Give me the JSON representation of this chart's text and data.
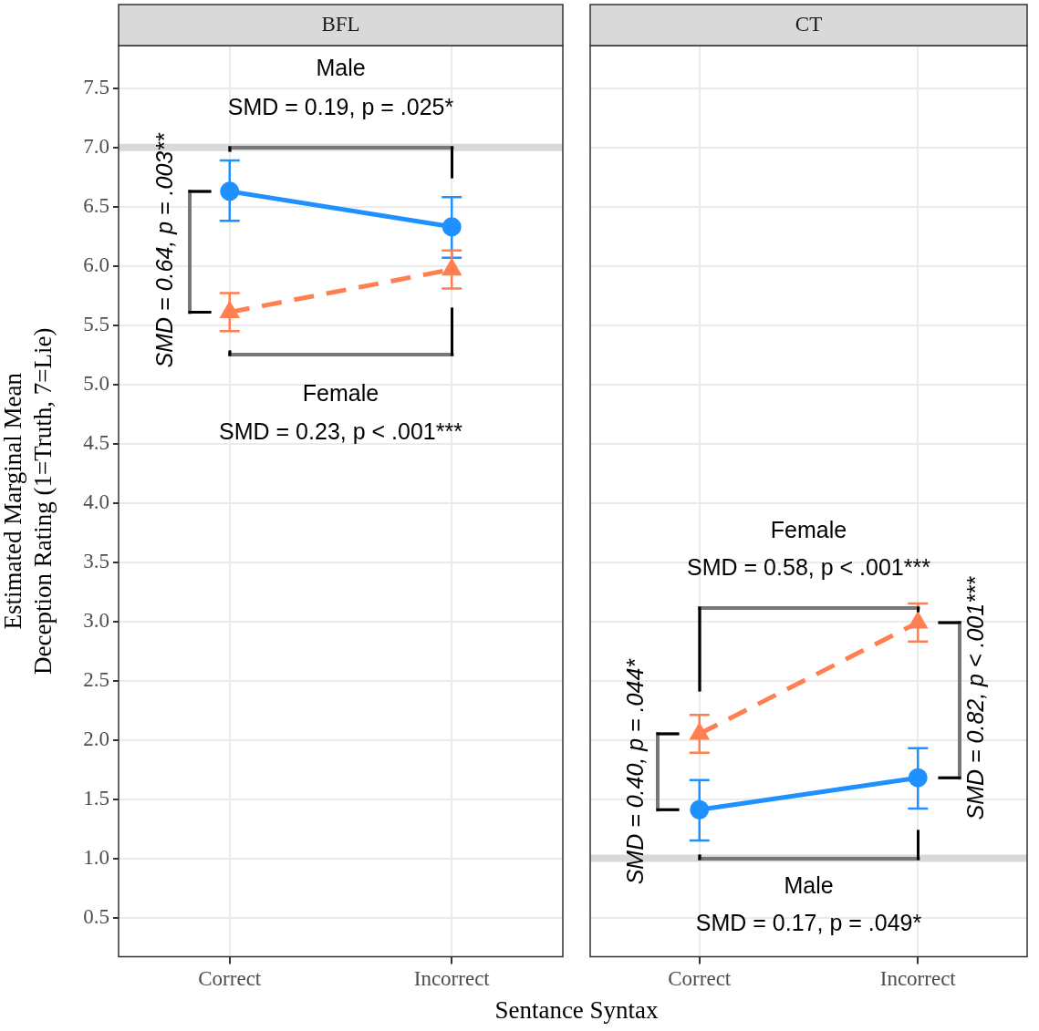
{
  "chart_data": [
    {
      "type": "line",
      "title": "BFL",
      "xlabel": "Sentance Syntax",
      "ylabel": "Estimated Marginal Mean\nDeception Rating (1=Truth, 7=Lie)",
      "categories": [
        "Correct",
        "Incorrect"
      ],
      "series": [
        {
          "color": "#1e90ff",
          "marker": "circle",
          "line_style": "solid",
          "values": [
            6.63,
            6.33
          ],
          "errors": [
            [
              6.38,
              6.89
            ],
            [
              6.07,
              6.58
            ]
          ]
        },
        {
          "color": "#ff7f50",
          "marker": "triangle",
          "line_style": "dashed",
          "values": [
            5.61,
            5.97
          ],
          "errors": [
            [
              5.45,
              5.77
            ],
            [
              5.81,
              6.13
            ]
          ]
        }
      ],
      "ylim": [
        0.17,
        7.86
      ],
      "yticks": [
        0.5,
        {
          "value": 1,
          "label": "1.0"
        },
        1.5,
        {
          "value": 2,
          "label": "2.0"
        },
        2.5,
        {
          "value": 3,
          "label": "3.0"
        },
        3.5,
        {
          "value": 4,
          "label": "4.0"
        },
        4.5,
        {
          "value": 5,
          "label": "5.0"
        },
        5.5,
        {
          "value": 6,
          "label": "6.0"
        },
        6.5,
        {
          "value": 7,
          "label": "7.0"
        },
        7.5
      ],
      "ref_lines": [
        {
          "axis": "y",
          "value": 7,
          "color": "#d9d9d9"
        }
      ],
      "annotations": [
        "Male",
        "SMD = 0.19, p = .025*",
        "Female",
        "SMD = 0.23, p < .001***",
        "SMD = 0.64, p = .003**"
      ],
      "grid": true,
      "legend": false
    },
    {
      "type": "line",
      "title": "CT",
      "categories": [
        "Correct",
        "Incorrect"
      ],
      "series": [
        {
          "color": "#1e90ff",
          "marker": "circle",
          "line_style": "solid",
          "values": [
            1.41,
            1.68
          ],
          "errors": [
            [
              1.15,
              1.66
            ],
            [
              1.42,
              1.93
            ]
          ]
        },
        {
          "color": "#ff7f50",
          "marker": "triangle",
          "line_style": "dashed",
          "values": [
            2.05,
            2.99
          ],
          "errors": [
            [
              1.89,
              2.21
            ],
            [
              2.83,
              3.15
            ]
          ]
        }
      ],
      "ylim": [
        0.17,
        7.86
      ],
      "yticks": [
        0.5,
        1,
        1.5,
        2,
        2.5,
        3,
        3.5,
        4,
        4.5,
        5,
        5.5,
        6,
        6.5,
        7,
        7.5
      ],
      "ref_lines": [
        {
          "axis": "y",
          "value": 1,
          "color": "#d9d9d9"
        }
      ],
      "annotations": [
        "Female",
        "SMD = 0.58, p < .001***",
        "Male",
        "SMD = 0.17, p = .049*",
        "SMD = 0.40, p = .044*",
        "SMD = 0.82, p < .001***"
      ],
      "grid": true,
      "legend": false,
      "tick_labels": "x"
    }
  ]
}
